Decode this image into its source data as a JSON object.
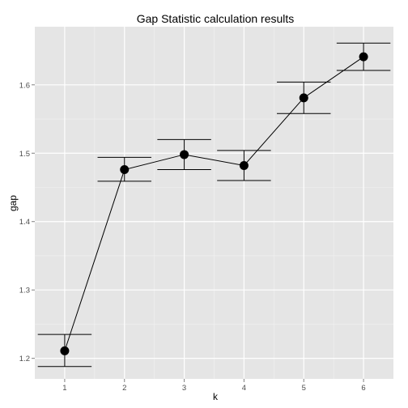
{
  "chart_data": {
    "type": "line",
    "title": "Gap Statistic calculation results",
    "xlabel": "k",
    "ylabel": "gap",
    "x": [
      1,
      2,
      3,
      4,
      5,
      6
    ],
    "x_ticks": [
      "1",
      "2",
      "3",
      "4",
      "5",
      "6"
    ],
    "xlim": [
      0.5,
      6.5
    ],
    "y_ticks": [
      1.2,
      1.3,
      1.4,
      1.5,
      1.6
    ],
    "y_tick_labels": [
      "1.2",
      "1.3",
      "1.4",
      "1.5",
      "1.6"
    ],
    "ylim": [
      1.17,
      1.685
    ],
    "grid": true,
    "series": [
      {
        "name": "gap",
        "values": [
          1.211,
          1.476,
          1.498,
          1.482,
          1.581,
          1.641
        ],
        "error_lower": [
          1.188,
          1.459,
          1.476,
          1.46,
          1.558,
          1.621
        ],
        "error_upper": [
          1.235,
          1.494,
          1.52,
          1.504,
          1.604,
          1.661
        ]
      }
    ],
    "colors": {
      "panel_background": "#e5e5e5",
      "major_grid": "#ffffff",
      "minor_grid": "#f2f2f2",
      "line": "#000000",
      "point": "#000000"
    }
  }
}
